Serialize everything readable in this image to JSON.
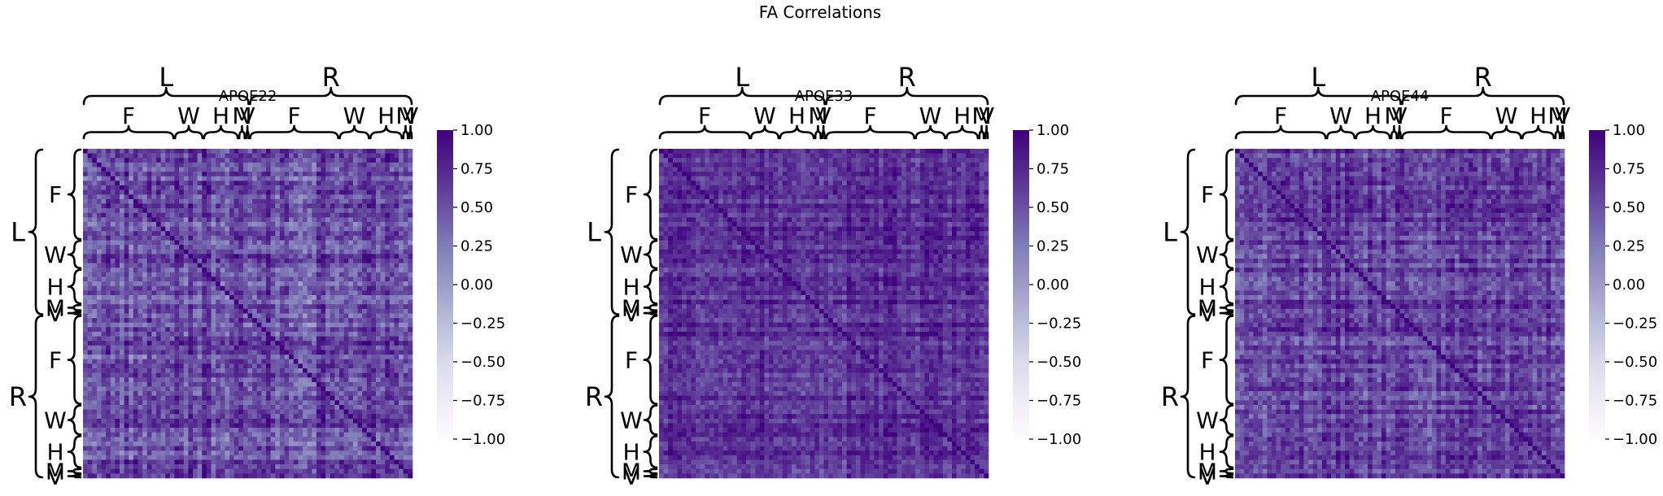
{
  "figure": {
    "suptitle": "FA Correlations",
    "colormap": [
      "#fcfbfd",
      "#efedf5",
      "#dadaeb",
      "#bcbddc",
      "#9e9ac8",
      "#807dba",
      "#6a51a3",
      "#54278f",
      "#3f007d"
    ]
  },
  "chart_data": [
    {
      "type": "heatmap",
      "title": "APOE22",
      "value_range": [
        -1.0,
        1.0
      ],
      "colorbar_ticks": [
        "1.00",
        "0.75",
        "0.50",
        "0.25",
        "0.00",
        "−0.25",
        "−0.50",
        "−0.75",
        "−1.00"
      ],
      "hemispheres": [
        {
          "label": "L",
          "regions": [
            "F",
            "W",
            "H",
            "M",
            "V"
          ]
        },
        {
          "label": "R",
          "regions": [
            "F",
            "W",
            "H",
            "M",
            "V"
          ]
        }
      ],
      "overall_level": 0.52,
      "contrast": 0.35,
      "diagonal": 1.0
    },
    {
      "type": "heatmap",
      "title": "APOE33",
      "value_range": [
        -1.0,
        1.0
      ],
      "colorbar_ticks": [
        "1.00",
        "0.75",
        "0.50",
        "0.25",
        "0.00",
        "−0.25",
        "−0.50",
        "−0.75",
        "−1.00"
      ],
      "hemispheres": [
        {
          "label": "L",
          "regions": [
            "F",
            "W",
            "H",
            "M",
            "V"
          ]
        },
        {
          "label": "R",
          "regions": [
            "F",
            "W",
            "H",
            "M",
            "V"
          ]
        }
      ],
      "overall_level": 0.7,
      "contrast": 0.25,
      "diagonal": 1.0
    },
    {
      "type": "heatmap",
      "title": "APOE44",
      "value_range": [
        -1.0,
        1.0
      ],
      "colorbar_ticks": [
        "1.00",
        "0.75",
        "0.50",
        "0.25",
        "0.00",
        "−0.25",
        "−0.50",
        "−0.75",
        "−1.00"
      ],
      "hemispheres": [
        {
          "label": "L",
          "regions": [
            "F",
            "W",
            "H",
            "M",
            "V"
          ]
        },
        {
          "label": "R",
          "regions": [
            "F",
            "W",
            "H",
            "M",
            "V"
          ]
        }
      ],
      "overall_level": 0.6,
      "contrast": 0.3,
      "diagonal": 1.0
    }
  ]
}
